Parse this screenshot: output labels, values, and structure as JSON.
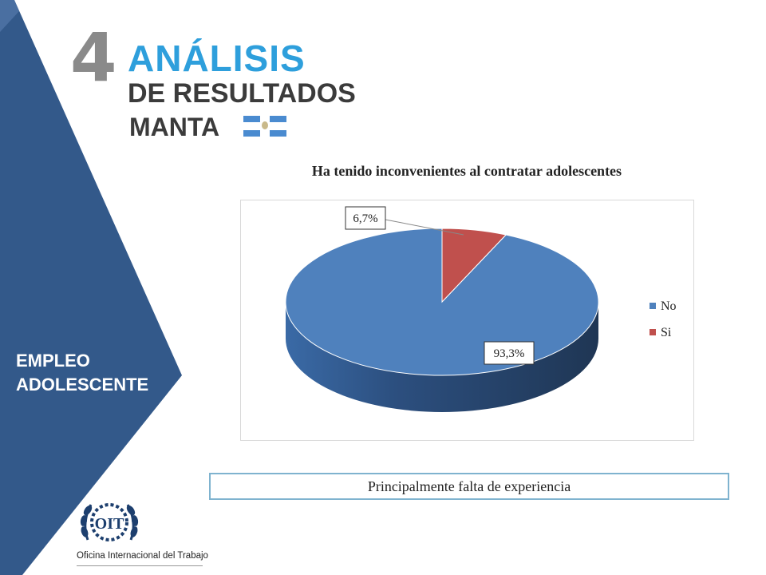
{
  "header": {
    "section_number": "4",
    "title_line1": "ANÁLISIS",
    "title_line2": "DE RESULTADOS",
    "title_line3": "MANTA"
  },
  "sidebar": {
    "label_line1": "EMPLEO",
    "label_line2": "ADOLESCENTE"
  },
  "chart_data": {
    "type": "pie",
    "title": "Ha tenido inconvenientes al contratar adolescentes",
    "categories": [
      "No",
      "Si"
    ],
    "values": [
      93.3,
      6.7
    ],
    "labels": [
      "93,3%",
      "6,7%"
    ],
    "colors": [
      "#4f81bd",
      "#c0504d"
    ],
    "legend": "right"
  },
  "note": "Principalmente falta de experiencia",
  "logo": {
    "text": "OIT",
    "caption": "Oficina Internacional del Trabajo"
  },
  "colors": {
    "band": "#33598a",
    "accent": "#2e9fdc",
    "heading": "#3b3b3b"
  }
}
